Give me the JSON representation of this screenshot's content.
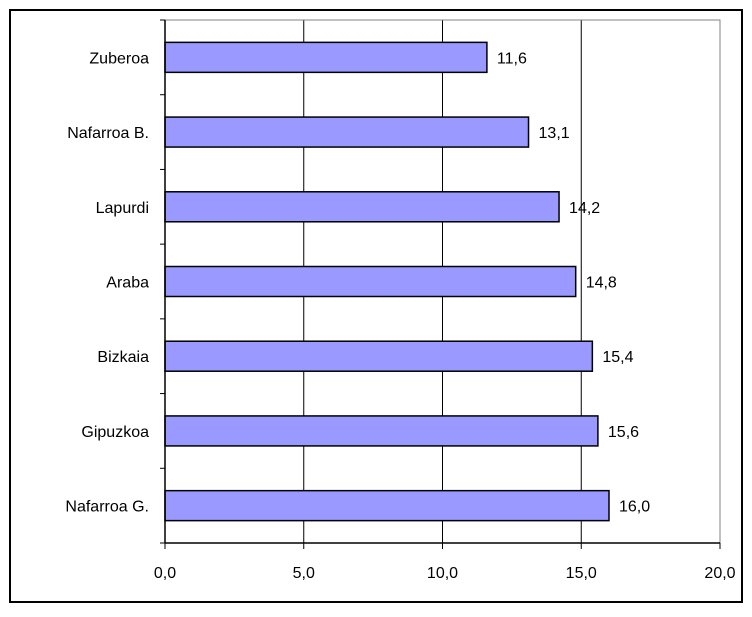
{
  "chart_data": {
    "type": "bar",
    "orientation": "horizontal",
    "categories": [
      "Zuberoa",
      "Nafarroa B.",
      "Lapurdi",
      "Araba",
      "Bizkaia",
      "Gipuzkoa",
      "Nafarroa G."
    ],
    "values": [
      11.6,
      13.1,
      14.2,
      14.8,
      15.4,
      15.6,
      16.0
    ],
    "value_labels": [
      "11,6",
      "13,1",
      "14,2",
      "14,8",
      "15,4",
      "15,6",
      "16,0"
    ],
    "xlim": [
      0,
      20
    ],
    "x_ticks": [
      0,
      5,
      10,
      15,
      20
    ],
    "x_tick_labels": [
      "0,0",
      "5,0",
      "10,0",
      "15,0",
      "20,0"
    ],
    "title": "",
    "xlabel": "",
    "ylabel": "",
    "grid": "vertical",
    "legend": "none",
    "colors": {
      "bar_fill": "#9999ff",
      "bar_stroke": "#000000",
      "gridline": "#000000",
      "plot_border": "#808080",
      "frame": "#000000"
    }
  }
}
